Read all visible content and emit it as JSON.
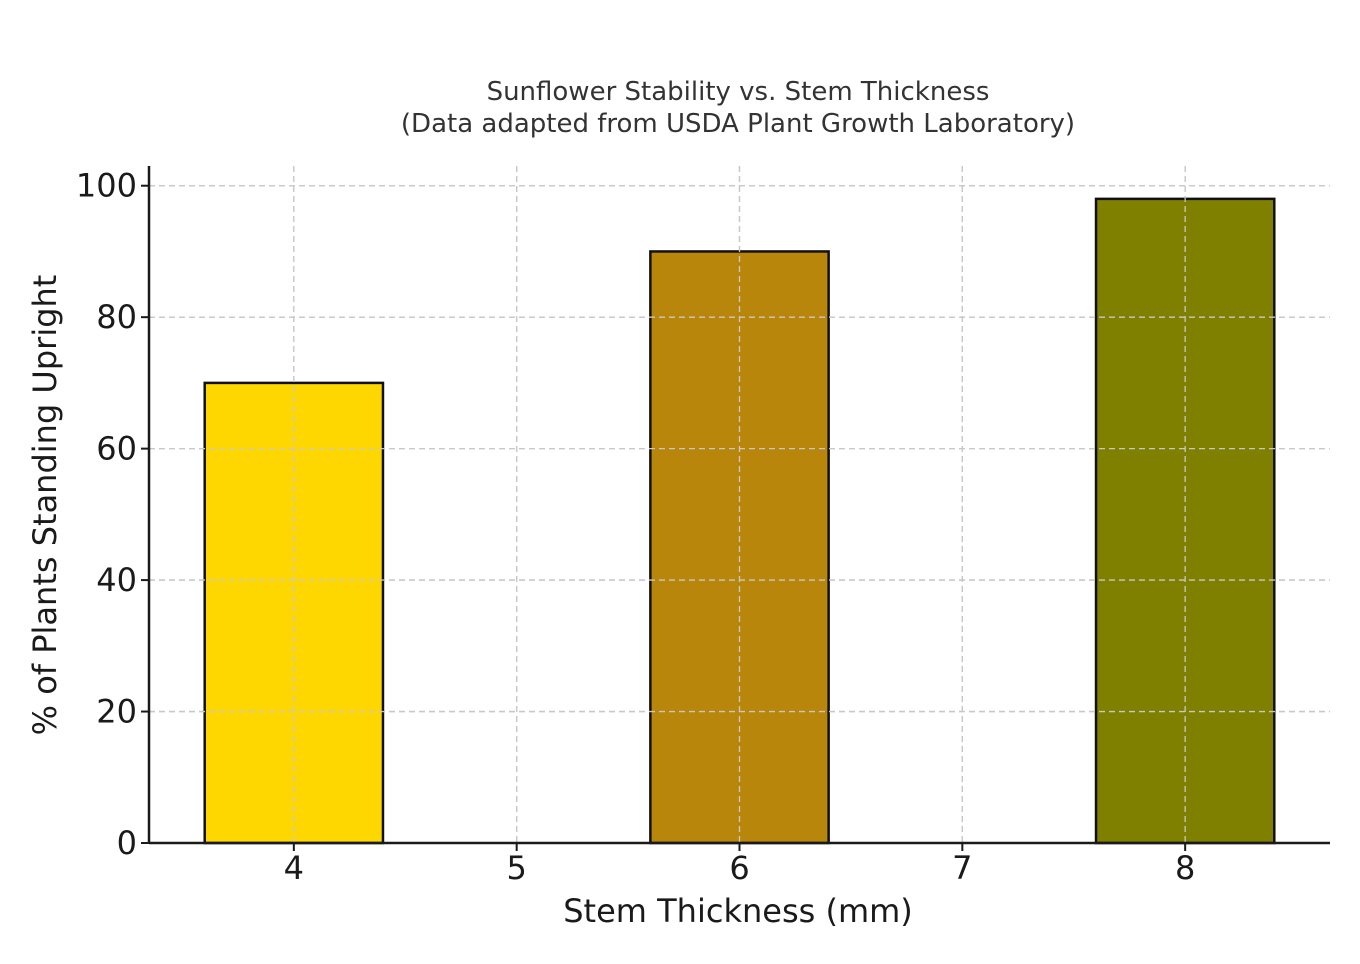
{
  "chart_data": {
    "type": "bar",
    "title": "Sunflower Stability vs. Stem Thickness",
    "subtitle": "(Data adapted from USDA Plant Growth Laboratory)",
    "xlabel": "Stem Thickness (mm)",
    "ylabel": "% of Plants Standing Upright",
    "x": [
      4,
      6,
      8
    ],
    "values": [
      70,
      90,
      98
    ],
    "bar_width": 0.8,
    "bar_colors": [
      "#FFD700",
      "#B8860B",
      "#808000"
    ],
    "xlim": [
      3.35,
      8.65
    ],
    "ylim": [
      0,
      103
    ],
    "xticks": [
      4,
      5,
      6,
      7,
      8
    ],
    "yticks": [
      0,
      20,
      40,
      60,
      80,
      100
    ],
    "grid": true,
    "legend": "none"
  }
}
